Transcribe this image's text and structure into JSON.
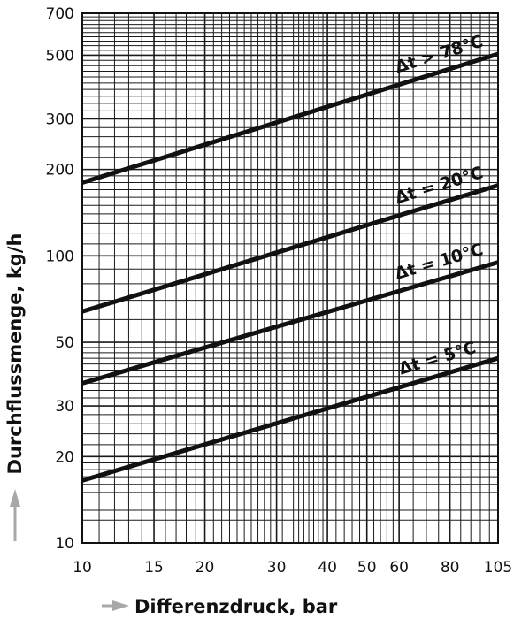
{
  "chart_data": {
    "type": "line",
    "xlabel": "Differenzdruck, bar",
    "ylabel": "Durchflussmenge, kg/h",
    "x_scale": "log",
    "y_scale": "log",
    "xlim": [
      10,
      105
    ],
    "ylim": [
      10,
      700
    ],
    "x_ticks": [
      10,
      15,
      20,
      30,
      40,
      50,
      60,
      80,
      105
    ],
    "y_ticks": [
      10,
      20,
      30,
      50,
      100,
      200,
      300,
      500,
      700
    ],
    "grid": true,
    "legend": "none",
    "series": [
      {
        "name": "Δt > 78°C",
        "x": [
          10,
          105
        ],
        "y": [
          180,
          505
        ]
      },
      {
        "name": "Δt = 20°C",
        "x": [
          10,
          105
        ],
        "y": [
          64,
          176
        ]
      },
      {
        "name": "Δt = 10°C",
        "x": [
          10,
          105
        ],
        "y": [
          36,
          95
        ]
      },
      {
        "name": "Δt = 5°C",
        "x": [
          10,
          105
        ],
        "y": [
          16.5,
          44
        ]
      }
    ]
  }
}
